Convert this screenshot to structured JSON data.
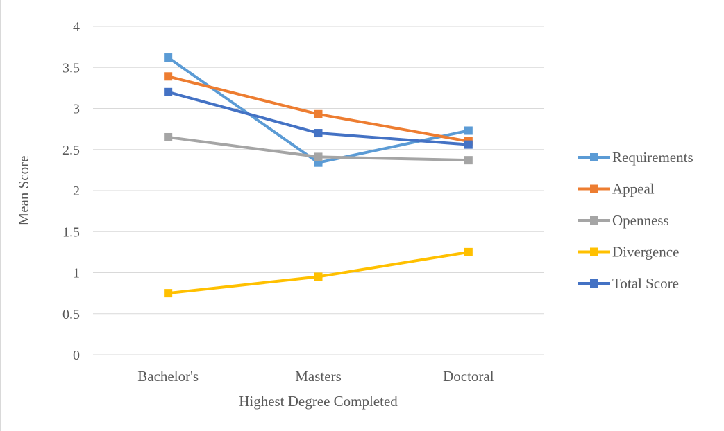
{
  "chart_data": {
    "type": "line",
    "title": "",
    "xlabel": "Highest Degree Completed",
    "ylabel": "Mean Score",
    "categories": [
      "Bachelor's",
      "Masters",
      "Doctoral"
    ],
    "ylim": [
      0,
      4
    ],
    "yticks": [
      "0",
      "0.5",
      "1",
      "1.5",
      "2",
      "2.5",
      "3",
      "3.5",
      "4"
    ],
    "grid": true,
    "legend_position": "right",
    "series": [
      {
        "name": "Requirements",
        "color": "#5b9bd5",
        "values": [
          3.62,
          2.34,
          2.73
        ]
      },
      {
        "name": "Appeal",
        "color": "#ed7d31",
        "values": [
          3.39,
          2.93,
          2.6
        ]
      },
      {
        "name": "Openness",
        "color": "#a5a5a5",
        "values": [
          2.65,
          2.41,
          2.37
        ]
      },
      {
        "name": "Divergence",
        "color": "#ffc000",
        "values": [
          0.75,
          0.95,
          1.25
        ]
      },
      {
        "name": "Total Score",
        "color": "#4472c4",
        "values": [
          3.2,
          2.7,
          2.56
        ]
      }
    ]
  }
}
